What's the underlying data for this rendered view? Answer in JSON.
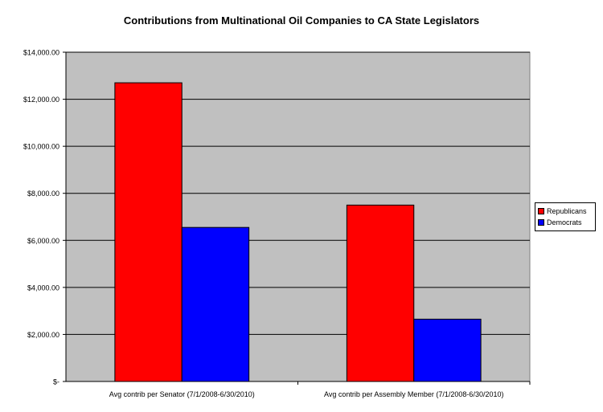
{
  "chart_data": {
    "type": "bar",
    "title": "Contributions from Multinational Oil Companies to CA State Legislators",
    "categories": [
      "Avg contrib per Senator (7/1/2008-6/30/2010)",
      "Avg contrib per Assembly Member (7/1/2008-6/30/2010)"
    ],
    "series": [
      {
        "name": "Republicans",
        "values": [
          12700,
          7500
        ],
        "color": "#ff0000"
      },
      {
        "name": "Democrats",
        "values": [
          6550,
          2650
        ],
        "color": "#0000ff"
      }
    ],
    "ylim": [
      0,
      14000
    ],
    "yticks": [
      0,
      2000,
      4000,
      6000,
      8000,
      10000,
      12000,
      14000
    ],
    "ytick_labels": [
      "$-",
      "$2,000.00",
      "$4,000.00",
      "$6,000.00",
      "$8,000.00",
      "$10,000.00",
      "$12,000.00",
      "$14,000.00"
    ],
    "plot_background": "#c0c0c0",
    "grid": true,
    "legend_position": "right"
  }
}
